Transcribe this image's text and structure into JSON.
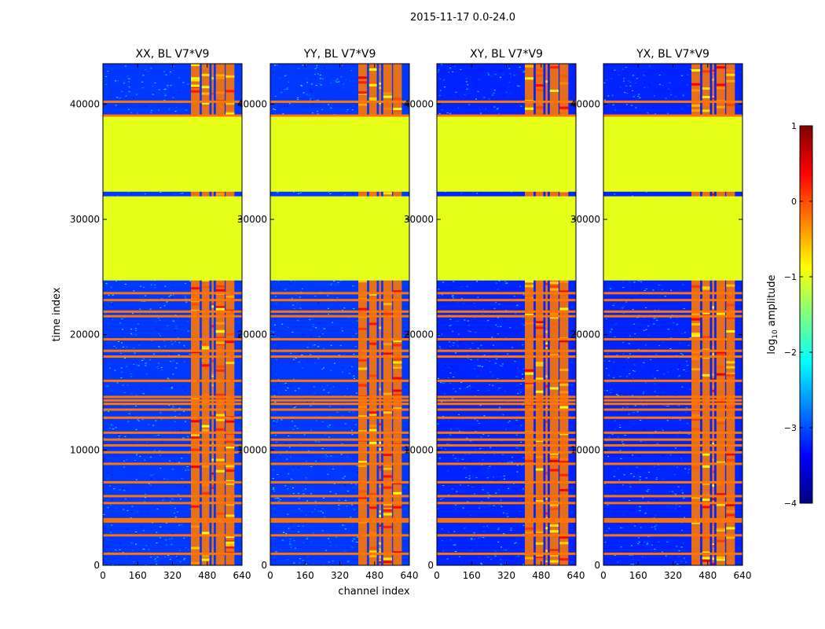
{
  "figure": {
    "suptitle": "2015-11-17 0.0-24.0",
    "xlabel": "channel index",
    "ylabel": "time index"
  },
  "colormap": {
    "name": "jet",
    "stops": [
      "#00007f",
      "#0000ff",
      "#007fff",
      "#00ffff",
      "#7fff7f",
      "#ffff00",
      "#ff7f00",
      "#ff0000",
      "#7f0000"
    ]
  },
  "colorbar": {
    "label_prefix": "log",
    "label_sub": "10",
    "label_suffix": " amplitude",
    "range": [
      -4,
      1
    ],
    "ticks": [
      1,
      0,
      -1,
      -2,
      -3,
      -4
    ],
    "tick_labels": [
      "1",
      "0",
      "−1",
      "−2",
      "−3",
      "−4"
    ]
  },
  "chart_data": [
    {
      "type": "heatmap",
      "title": "XX, BL V7*V9",
      "xlim": [
        0,
        640
      ],
      "ylim": [
        0,
        43500
      ],
      "xticks": [
        0,
        160,
        320,
        480,
        640
      ],
      "xtick_labels": [
        "0",
        "160",
        "320",
        "480",
        "640"
      ],
      "yticks": [
        0,
        10000,
        20000,
        30000,
        40000
      ],
      "ytick_labels": [
        "0",
        "10000",
        "20000",
        "30000",
        "40000"
      ],
      "background_log_amplitude": -3.1,
      "flagged_time_ranges": [
        [
          24700,
          32000
        ],
        [
          32400,
          38900
        ]
      ],
      "flagged_log_amplitude": -1.0,
      "rfi_channel_ranges": [
        [
          405,
          445
        ],
        [
          455,
          490
        ],
        [
          500,
          510
        ],
        [
          520,
          560
        ],
        [
          565,
          605
        ]
      ],
      "rfi_log_amplitude": -0.2,
      "rfi_rows": [
        1000,
        2600,
        3800,
        4000,
        5400,
        6000,
        7200,
        8800,
        9800,
        10400,
        10900,
        11500,
        12800,
        13500,
        14000,
        14300,
        14600,
        16000,
        18100,
        18600,
        19600,
        21600,
        22000,
        23000,
        23600,
        39000,
        40200
      ]
    },
    {
      "type": "heatmap",
      "title": "YY, BL V7*V9",
      "xlim": [
        0,
        640
      ],
      "ylim": [
        0,
        43500
      ],
      "xticks": [
        0,
        160,
        320,
        480,
        640
      ],
      "xtick_labels": [
        "0",
        "160",
        "320",
        "480",
        "640"
      ],
      "yticks": [
        0,
        10000,
        20000,
        30000,
        40000
      ],
      "ytick_labels": [
        "0",
        "10000",
        "20000",
        "30000",
        "40000"
      ],
      "background_log_amplitude": -3.1,
      "flagged_time_ranges": [
        [
          24700,
          32000
        ],
        [
          32400,
          38900
        ]
      ],
      "flagged_log_amplitude": -1.0,
      "rfi_channel_ranges": [
        [
          405,
          445
        ],
        [
          455,
          490
        ],
        [
          500,
          510
        ],
        [
          520,
          560
        ],
        [
          565,
          605
        ]
      ],
      "rfi_log_amplitude": -0.2,
      "rfi_rows": [
        1000,
        2600,
        3800,
        4000,
        5400,
        6000,
        7200,
        8800,
        9800,
        10400,
        10900,
        11500,
        12800,
        13500,
        14000,
        14300,
        14600,
        16000,
        18100,
        18600,
        19600,
        21600,
        22000,
        23000,
        23600,
        39000,
        40200
      ]
    },
    {
      "type": "heatmap",
      "title": "XY, BL V7*V9",
      "xlim": [
        0,
        640
      ],
      "ylim": [
        0,
        43500
      ],
      "xticks": [
        0,
        160,
        320,
        480,
        640
      ],
      "xtick_labels": [
        "0",
        "160",
        "320",
        "480",
        "640"
      ],
      "yticks": [
        0,
        10000,
        20000,
        30000,
        40000
      ],
      "ytick_labels": [
        "0",
        "10000",
        "20000",
        "30000",
        "40000"
      ],
      "background_log_amplitude": -3.2,
      "flagged_time_ranges": [
        [
          24700,
          32000
        ],
        [
          32400,
          38900
        ]
      ],
      "flagged_log_amplitude": -1.0,
      "rfi_channel_ranges": [
        [
          405,
          445
        ],
        [
          455,
          490
        ],
        [
          500,
          510
        ],
        [
          520,
          560
        ],
        [
          565,
          605
        ]
      ],
      "rfi_log_amplitude": -0.2,
      "rfi_rows": [
        1000,
        2600,
        3800,
        4000,
        5400,
        6000,
        7200,
        8800,
        9800,
        10400,
        10900,
        11500,
        12800,
        13500,
        14000,
        14300,
        14600,
        16000,
        18100,
        18600,
        19600,
        21600,
        22000,
        23000,
        23600,
        39000,
        40200
      ]
    },
    {
      "type": "heatmap",
      "title": "YX, BL V7*V9",
      "xlim": [
        0,
        640
      ],
      "ylim": [
        0,
        43500
      ],
      "xticks": [
        0,
        160,
        320,
        480,
        640
      ],
      "xtick_labels": [
        "0",
        "160",
        "320",
        "480",
        "640"
      ],
      "yticks": [
        0,
        10000,
        20000,
        30000,
        40000
      ],
      "ytick_labels": [
        "0",
        "10000",
        "20000",
        "30000",
        "40000"
      ],
      "background_log_amplitude": -3.2,
      "flagged_time_ranges": [
        [
          24700,
          32000
        ],
        [
          32400,
          38900
        ]
      ],
      "flagged_log_amplitude": -1.0,
      "rfi_channel_ranges": [
        [
          405,
          445
        ],
        [
          455,
          490
        ],
        [
          500,
          510
        ],
        [
          520,
          560
        ],
        [
          565,
          605
        ]
      ],
      "rfi_log_amplitude": -0.2,
      "rfi_rows": [
        1000,
        2600,
        3800,
        4000,
        5400,
        6000,
        7200,
        8800,
        9800,
        10400,
        10900,
        11500,
        12800,
        13500,
        14000,
        14300,
        14600,
        16000,
        18100,
        18600,
        19600,
        21600,
        22000,
        23000,
        23600,
        39000,
        40200
      ]
    }
  ]
}
